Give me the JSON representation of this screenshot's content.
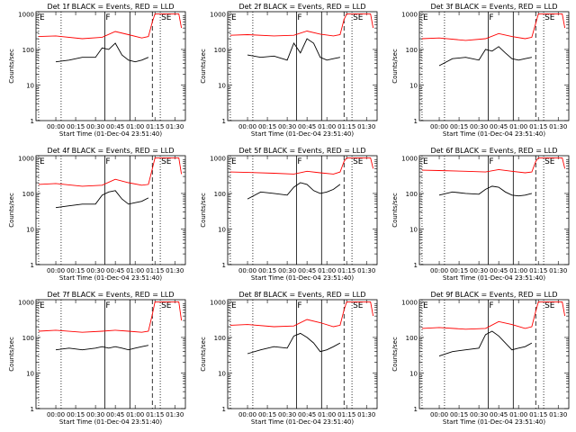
{
  "figure": {
    "xlabel": "Start Time (01-Dec-04 23:51:40)",
    "ylabel": "Counts/sec",
    "x_ticks": [
      "00:00",
      "00:15",
      "00:30",
      "00:45",
      "01:00",
      "01:15",
      "01:30"
    ],
    "y_ticks": [
      "1",
      "10",
      "100",
      "1000"
    ],
    "colors": {
      "events": "#000000",
      "lld": "#ff0000",
      "background": "#ffffff",
      "axes": "#000000"
    }
  },
  "chart_data": [
    {
      "type": "line",
      "title": "Det 1f BLACK = Events, RED = LLD",
      "xlim": [
        -15,
        98
      ],
      "ylim": [
        1,
        1000
      ],
      "yscale": "log",
      "markers": [
        {
          "label": "E",
          "x": -13,
          "style": "dotted"
        },
        {
          "label": "",
          "x": 4,
          "style": "dotted"
        },
        {
          "label": "F",
          "x": 37,
          "style": "solid"
        },
        {
          "label": "",
          "x": 56,
          "style": "solid"
        },
        {
          "label": "",
          "x": 73,
          "style": "dashed"
        },
        {
          "label": "SE",
          "x": 79,
          "style": "dotted"
        }
      ],
      "series": [
        {
          "name": "Events",
          "color": "#000000",
          "x": [
            0,
            10,
            20,
            30,
            35,
            40,
            45,
            50,
            55,
            60,
            65,
            70
          ],
          "values": [
            45,
            50,
            60,
            60,
            110,
            100,
            150,
            70,
            50,
            45,
            50,
            60
          ]
        },
        {
          "name": "LLD",
          "color": "#ff0000",
          "x": [
            -13,
            0,
            20,
            35,
            45,
            55,
            65,
            70,
            73,
            75,
            93,
            95
          ],
          "values": [
            230,
            240,
            200,
            220,
            320,
            260,
            210,
            230,
            600,
            1000,
            1000,
            400
          ]
        }
      ]
    },
    {
      "type": "line",
      "title": "Det 2f BLACK = Events, RED = LLD",
      "xlim": [
        -15,
        98
      ],
      "ylim": [
        1,
        1000
      ],
      "yscale": "log",
      "markers": [
        {
          "label": "E",
          "x": -13,
          "style": "dotted"
        },
        {
          "label": "",
          "x": 4,
          "style": "dotted"
        },
        {
          "label": "F",
          "x": 37,
          "style": "solid"
        },
        {
          "label": "",
          "x": 56,
          "style": "solid"
        },
        {
          "label": "",
          "x": 73,
          "style": "dashed"
        },
        {
          "label": "SE",
          "x": 79,
          "style": "dotted"
        }
      ],
      "series": [
        {
          "name": "Events",
          "color": "#000000",
          "x": [
            0,
            10,
            20,
            30,
            35,
            40,
            45,
            50,
            55,
            60,
            65,
            70
          ],
          "values": [
            70,
            60,
            65,
            50,
            150,
            80,
            200,
            150,
            60,
            50,
            55,
            60
          ]
        },
        {
          "name": "LLD",
          "color": "#ff0000",
          "x": [
            -13,
            0,
            20,
            35,
            45,
            55,
            65,
            70,
            73,
            75,
            93,
            95
          ],
          "values": [
            250,
            260,
            240,
            250,
            330,
            270,
            240,
            260,
            700,
            1000,
            1000,
            400
          ]
        }
      ]
    },
    {
      "type": "line",
      "title": "Det 3f BLACK = Events, RED = LLD",
      "xlim": [
        -15,
        98
      ],
      "ylim": [
        1,
        1000
      ],
      "yscale": "log",
      "markers": [
        {
          "label": "E",
          "x": -13,
          "style": "dotted"
        },
        {
          "label": "",
          "x": 4,
          "style": "dotted"
        },
        {
          "label": "F",
          "x": 37,
          "style": "solid"
        },
        {
          "label": "",
          "x": 56,
          "style": "solid"
        },
        {
          "label": "",
          "x": 73,
          "style": "dashed"
        },
        {
          "label": "SE",
          "x": 79,
          "style": "dotted"
        }
      ],
      "series": [
        {
          "name": "Events",
          "color": "#000000",
          "x": [
            0,
            10,
            20,
            30,
            35,
            40,
            45,
            50,
            55,
            60,
            65,
            70
          ],
          "values": [
            35,
            55,
            60,
            50,
            100,
            90,
            120,
            80,
            55,
            50,
            55,
            60
          ]
        },
        {
          "name": "LLD",
          "color": "#ff0000",
          "x": [
            -13,
            0,
            20,
            35,
            45,
            55,
            65,
            70,
            73,
            75,
            93,
            95
          ],
          "values": [
            200,
            210,
            180,
            200,
            280,
            230,
            200,
            220,
            550,
            1000,
            1000,
            400
          ]
        }
      ]
    },
    {
      "type": "line",
      "title": "Det 4f BLACK = Events, RED = LLD",
      "xlim": [
        -15,
        98
      ],
      "ylim": [
        1,
        1000
      ],
      "yscale": "log",
      "markers": [
        {
          "label": "E",
          "x": -13,
          "style": "dotted"
        },
        {
          "label": "",
          "x": 4,
          "style": "dotted"
        },
        {
          "label": "F",
          "x": 37,
          "style": "solid"
        },
        {
          "label": "",
          "x": 56,
          "style": "solid"
        },
        {
          "label": "",
          "x": 73,
          "style": "dashed"
        },
        {
          "label": "SE",
          "x": 79,
          "style": "dotted"
        }
      ],
      "series": [
        {
          "name": "Events",
          "color": "#000000",
          "x": [
            0,
            10,
            20,
            30,
            35,
            40,
            45,
            50,
            55,
            60,
            65,
            70
          ],
          "values": [
            40,
            45,
            50,
            50,
            90,
            110,
            120,
            70,
            50,
            55,
            60,
            75
          ]
        },
        {
          "name": "LLD",
          "color": "#ff0000",
          "x": [
            -13,
            0,
            20,
            35,
            45,
            55,
            65,
            70,
            73,
            75,
            93,
            95
          ],
          "values": [
            180,
            190,
            160,
            170,
            250,
            200,
            170,
            180,
            500,
            1000,
            1000,
            350
          ]
        }
      ]
    },
    {
      "type": "line",
      "title": "Det 5f BLACK = Events, RED = LLD",
      "xlim": [
        -15,
        98
      ],
      "ylim": [
        1,
        1000
      ],
      "yscale": "log",
      "markers": [
        {
          "label": "E",
          "x": -13,
          "style": "dotted"
        },
        {
          "label": "",
          "x": 4,
          "style": "dotted"
        },
        {
          "label": "F",
          "x": 37,
          "style": "solid"
        },
        {
          "label": "",
          "x": 56,
          "style": "solid"
        },
        {
          "label": "",
          "x": 73,
          "style": "dashed"
        },
        {
          "label": "SE",
          "x": 79,
          "style": "dotted"
        }
      ],
      "series": [
        {
          "name": "Events",
          "color": "#000000",
          "x": [
            0,
            10,
            20,
            30,
            35,
            40,
            45,
            50,
            55,
            60,
            65,
            70
          ],
          "values": [
            70,
            110,
            100,
            90,
            150,
            200,
            180,
            120,
            100,
            110,
            130,
            180
          ]
        },
        {
          "name": "LLD",
          "color": "#ff0000",
          "x": [
            -13,
            0,
            20,
            35,
            45,
            55,
            65,
            70,
            73,
            75,
            93,
            95
          ],
          "values": [
            400,
            390,
            370,
            350,
            420,
            380,
            350,
            400,
            800,
            1000,
            1000,
            500
          ]
        }
      ]
    },
    {
      "type": "line",
      "title": "Det 6f BLACK = Events, RED = LLD",
      "xlim": [
        -15,
        98
      ],
      "ylim": [
        1,
        1000
      ],
      "yscale": "log",
      "markers": [
        {
          "label": "E",
          "x": -13,
          "style": "dotted"
        },
        {
          "label": "",
          "x": 4,
          "style": "dotted"
        },
        {
          "label": "F",
          "x": 37,
          "style": "solid"
        },
        {
          "label": "",
          "x": 56,
          "style": "solid"
        },
        {
          "label": "",
          "x": 73,
          "style": "dashed"
        },
        {
          "label": "SE",
          "x": 79,
          "style": "dotted"
        }
      ],
      "series": [
        {
          "name": "Events",
          "color": "#000000",
          "x": [
            0,
            10,
            20,
            30,
            35,
            40,
            45,
            50,
            55,
            60,
            65,
            70
          ],
          "values": [
            90,
            110,
            100,
            95,
            130,
            160,
            150,
            110,
            90,
            85,
            90,
            100
          ]
        },
        {
          "name": "LLD",
          "color": "#ff0000",
          "x": [
            -13,
            0,
            20,
            35,
            45,
            55,
            65,
            70,
            73,
            75,
            93,
            95
          ],
          "values": [
            450,
            440,
            420,
            400,
            470,
            420,
            380,
            400,
            800,
            1000,
            1000,
            500
          ]
        }
      ]
    },
    {
      "type": "line",
      "title": "Det 7f BLACK = Events, RED = LLD",
      "xlim": [
        -15,
        98
      ],
      "ylim": [
        1,
        1000
      ],
      "yscale": "log",
      "markers": [
        {
          "label": "E",
          "x": -13,
          "style": "dotted"
        },
        {
          "label": "",
          "x": 4,
          "style": "dotted"
        },
        {
          "label": "F",
          "x": 37,
          "style": "solid"
        },
        {
          "label": "",
          "x": 56,
          "style": "solid"
        },
        {
          "label": "",
          "x": 73,
          "style": "dashed"
        },
        {
          "label": "SE",
          "x": 79,
          "style": "dotted"
        }
      ],
      "series": [
        {
          "name": "Events",
          "color": "#000000",
          "x": [
            0,
            10,
            20,
            30,
            35,
            40,
            45,
            50,
            55,
            60,
            65,
            70
          ],
          "values": [
            45,
            50,
            45,
            50,
            55,
            50,
            55,
            50,
            45,
            50,
            55,
            60
          ]
        },
        {
          "name": "LLD",
          "color": "#ff0000",
          "x": [
            -13,
            0,
            20,
            35,
            45,
            55,
            65,
            70,
            73,
            75,
            93,
            95
          ],
          "values": [
            150,
            160,
            140,
            150,
            160,
            150,
            140,
            150,
            450,
            1000,
            1000,
            300
          ]
        }
      ]
    },
    {
      "type": "line",
      "title": "Det 8f BLACK = Events, RED = LLD",
      "xlim": [
        -15,
        98
      ],
      "ylim": [
        1,
        1000
      ],
      "yscale": "log",
      "markers": [
        {
          "label": "E",
          "x": -13,
          "style": "dotted"
        },
        {
          "label": "",
          "x": 4,
          "style": "dotted"
        },
        {
          "label": "F",
          "x": 37,
          "style": "solid"
        },
        {
          "label": "",
          "x": 56,
          "style": "solid"
        },
        {
          "label": "",
          "x": 73,
          "style": "dashed"
        },
        {
          "label": "SE",
          "x": 79,
          "style": "dotted"
        }
      ],
      "series": [
        {
          "name": "Events",
          "color": "#000000",
          "x": [
            0,
            10,
            20,
            30,
            35,
            40,
            45,
            50,
            55,
            60,
            65,
            70
          ],
          "values": [
            35,
            45,
            55,
            50,
            110,
            130,
            100,
            70,
            40,
            45,
            55,
            70
          ]
        },
        {
          "name": "LLD",
          "color": "#ff0000",
          "x": [
            -13,
            0,
            20,
            35,
            45,
            55,
            65,
            70,
            73,
            75,
            93,
            95
          ],
          "values": [
            220,
            230,
            200,
            210,
            320,
            260,
            200,
            220,
            600,
            1000,
            1000,
            400
          ]
        }
      ]
    },
    {
      "type": "line",
      "title": "Det 9f BLACK = Events, RED = LLD",
      "xlim": [
        -15,
        98
      ],
      "ylim": [
        1,
        1000
      ],
      "yscale": "log",
      "markers": [
        {
          "label": "E",
          "x": -13,
          "style": "dotted"
        },
        {
          "label": "",
          "x": 4,
          "style": "dotted"
        },
        {
          "label": "F",
          "x": 37,
          "style": "solid"
        },
        {
          "label": "",
          "x": 56,
          "style": "solid"
        },
        {
          "label": "",
          "x": 73,
          "style": "dashed"
        },
        {
          "label": "SE",
          "x": 79,
          "style": "dotted"
        }
      ],
      "series": [
        {
          "name": "Events",
          "color": "#000000",
          "x": [
            0,
            10,
            20,
            30,
            35,
            40,
            45,
            50,
            55,
            60,
            65,
            70
          ],
          "values": [
            30,
            40,
            45,
            50,
            120,
            150,
            110,
            70,
            45,
            50,
            55,
            70
          ]
        },
        {
          "name": "LLD",
          "color": "#ff0000",
          "x": [
            -13,
            0,
            20,
            35,
            45,
            55,
            65,
            70,
            73,
            75,
            93,
            95
          ],
          "values": [
            180,
            190,
            170,
            180,
            280,
            230,
            180,
            200,
            550,
            1000,
            1000,
            400
          ]
        }
      ]
    }
  ]
}
